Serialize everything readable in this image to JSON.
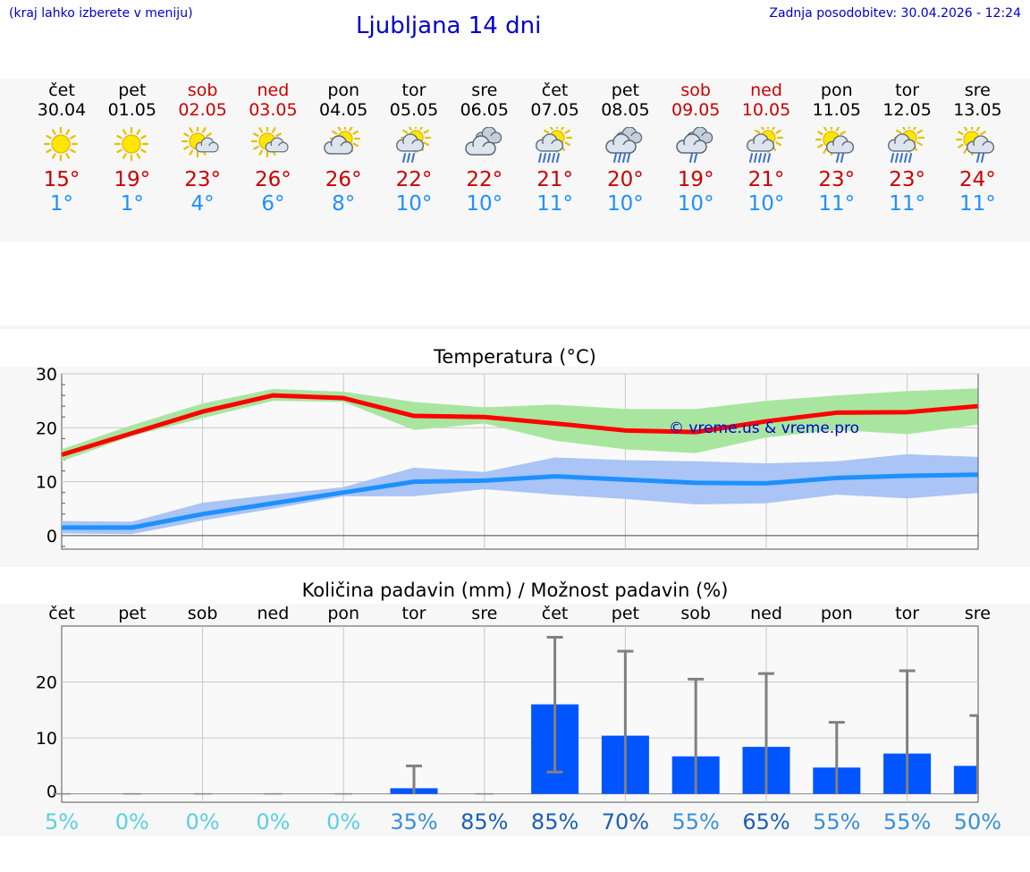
{
  "header": {
    "menu_hint": "(kraj lahko izberete v meniju)",
    "title": "Ljubljana 14 dni",
    "last_update": "Zadnja posodobitev: 30.04.2026 - 12:24"
  },
  "days": [
    {
      "name": "čet",
      "date": "30.04",
      "weekend": false,
      "icon": "sun",
      "max": "15°",
      "min": "1°"
    },
    {
      "name": "pet",
      "date": "01.05",
      "weekend": false,
      "icon": "sun",
      "max": "19°",
      "min": "1°"
    },
    {
      "name": "sob",
      "date": "02.05",
      "weekend": true,
      "icon": "sun-cloud-small",
      "max": "23°",
      "min": "4°"
    },
    {
      "name": "ned",
      "date": "03.05",
      "weekend": true,
      "icon": "sun-cloud-small",
      "max": "26°",
      "min": "6°"
    },
    {
      "name": "pon",
      "date": "04.05",
      "weekend": false,
      "icon": "sun-cloud",
      "max": "26°",
      "min": "8°"
    },
    {
      "name": "tor",
      "date": "05.05",
      "weekend": false,
      "icon": "sun-cloud-rain",
      "max": "22°",
      "min": "10°"
    },
    {
      "name": "sre",
      "date": "06.05",
      "weekend": false,
      "icon": "clouds",
      "max": "22°",
      "min": "10°"
    },
    {
      "name": "čet",
      "date": "07.05",
      "weekend": false,
      "icon": "sun-cloud-heavy-rain",
      "max": "21°",
      "min": "11°"
    },
    {
      "name": "pet",
      "date": "08.05",
      "weekend": false,
      "icon": "cloud-rain",
      "max": "20°",
      "min": "10°"
    },
    {
      "name": "sob",
      "date": "09.05",
      "weekend": true,
      "icon": "cloud-light-rain",
      "max": "19°",
      "min": "10°"
    },
    {
      "name": "ned",
      "date": "10.05",
      "weekend": true,
      "icon": "sun-cloud-heavy-rain",
      "max": "21°",
      "min": "10°"
    },
    {
      "name": "pon",
      "date": "11.05",
      "weekend": false,
      "icon": "sun-cloud-light-rain",
      "max": "23°",
      "min": "11°"
    },
    {
      "name": "tor",
      "date": "12.05",
      "weekend": false,
      "icon": "sun-cloud-heavy-rain",
      "max": "23°",
      "min": "11°"
    },
    {
      "name": "sre",
      "date": "13.05",
      "weekend": false,
      "icon": "sun-cloud-light-rain",
      "max": "24°",
      "min": "11°"
    }
  ],
  "chart_data": [
    {
      "type": "line",
      "title": "Temperatura (°C)",
      "watermark": "© vreme.us & vreme.pro",
      "ylim": [
        -2.5,
        30
      ],
      "yticks": [
        0,
        10,
        20,
        30
      ],
      "series": [
        {
          "name": "max",
          "color": "#ff0000",
          "values": [
            15,
            19,
            23,
            26,
            25.5,
            22.2,
            22,
            20.8,
            19.5,
            19.2,
            21.2,
            22.8,
            22.9,
            24
          ]
        },
        {
          "name": "max-range",
          "color": "#a8e6a0",
          "upper": [
            16,
            20.5,
            24.5,
            27.2,
            26.7,
            24.8,
            23.8,
            24.3,
            23.5,
            23.5,
            25,
            26,
            26.8,
            27.3
          ],
          "lower": [
            13.8,
            18.5,
            21.8,
            25,
            24.8,
            19.6,
            20.8,
            17.6,
            16,
            15.3,
            18.2,
            19.6,
            18.8,
            20.6
          ]
        },
        {
          "name": "min",
          "color": "#1e90ff",
          "values": [
            1.5,
            1.5,
            4,
            6,
            8,
            10,
            10.2,
            11,
            10.4,
            9.8,
            9.7,
            10.7,
            11.1,
            11.3
          ]
        },
        {
          "name": "min-range",
          "color": "#a9c4f5",
          "upper": [
            2.7,
            2.6,
            6.1,
            7.6,
            9,
            12.6,
            11.8,
            14.5,
            14,
            13.8,
            13.4,
            13.8,
            15.1,
            14.6
          ],
          "lower": [
            0.4,
            0.3,
            2.8,
            5,
            7.3,
            7.3,
            8.6,
            7.6,
            6.8,
            5.8,
            6,
            7.6,
            6.9,
            7.9
          ]
        }
      ]
    },
    {
      "type": "bar",
      "title": "Količina padavin (mm) / Možnost padavin (%)",
      "categories": [
        "čet",
        "pet",
        "sob",
        "ned",
        "pon",
        "tor",
        "sre",
        "čet",
        "pet",
        "sob",
        "ned",
        "pon",
        "tor",
        "sre"
      ],
      "ylim": [
        -1.5,
        30
      ],
      "yticks": [
        0,
        10,
        20
      ],
      "values": [
        0,
        0,
        0,
        0,
        0,
        1,
        0,
        16,
        10.4,
        6.7,
        8.4,
        4.7,
        7.2,
        5
      ],
      "err_low": [
        0,
        0,
        0,
        0,
        0,
        0,
        0,
        3.9,
        0,
        0,
        0,
        0,
        0,
        0
      ],
      "err_high": [
        0,
        0,
        0,
        0,
        0,
        5,
        0,
        28,
        25.5,
        20.5,
        21.5,
        12.8,
        22,
        14
      ],
      "probability": [
        "5%",
        "0%",
        "0%",
        "0%",
        "0%",
        "35%",
        "85%",
        "85%",
        "70%",
        "55%",
        "65%",
        "55%",
        "55%",
        "50%"
      ],
      "bar_color": "#0055ff"
    }
  ]
}
